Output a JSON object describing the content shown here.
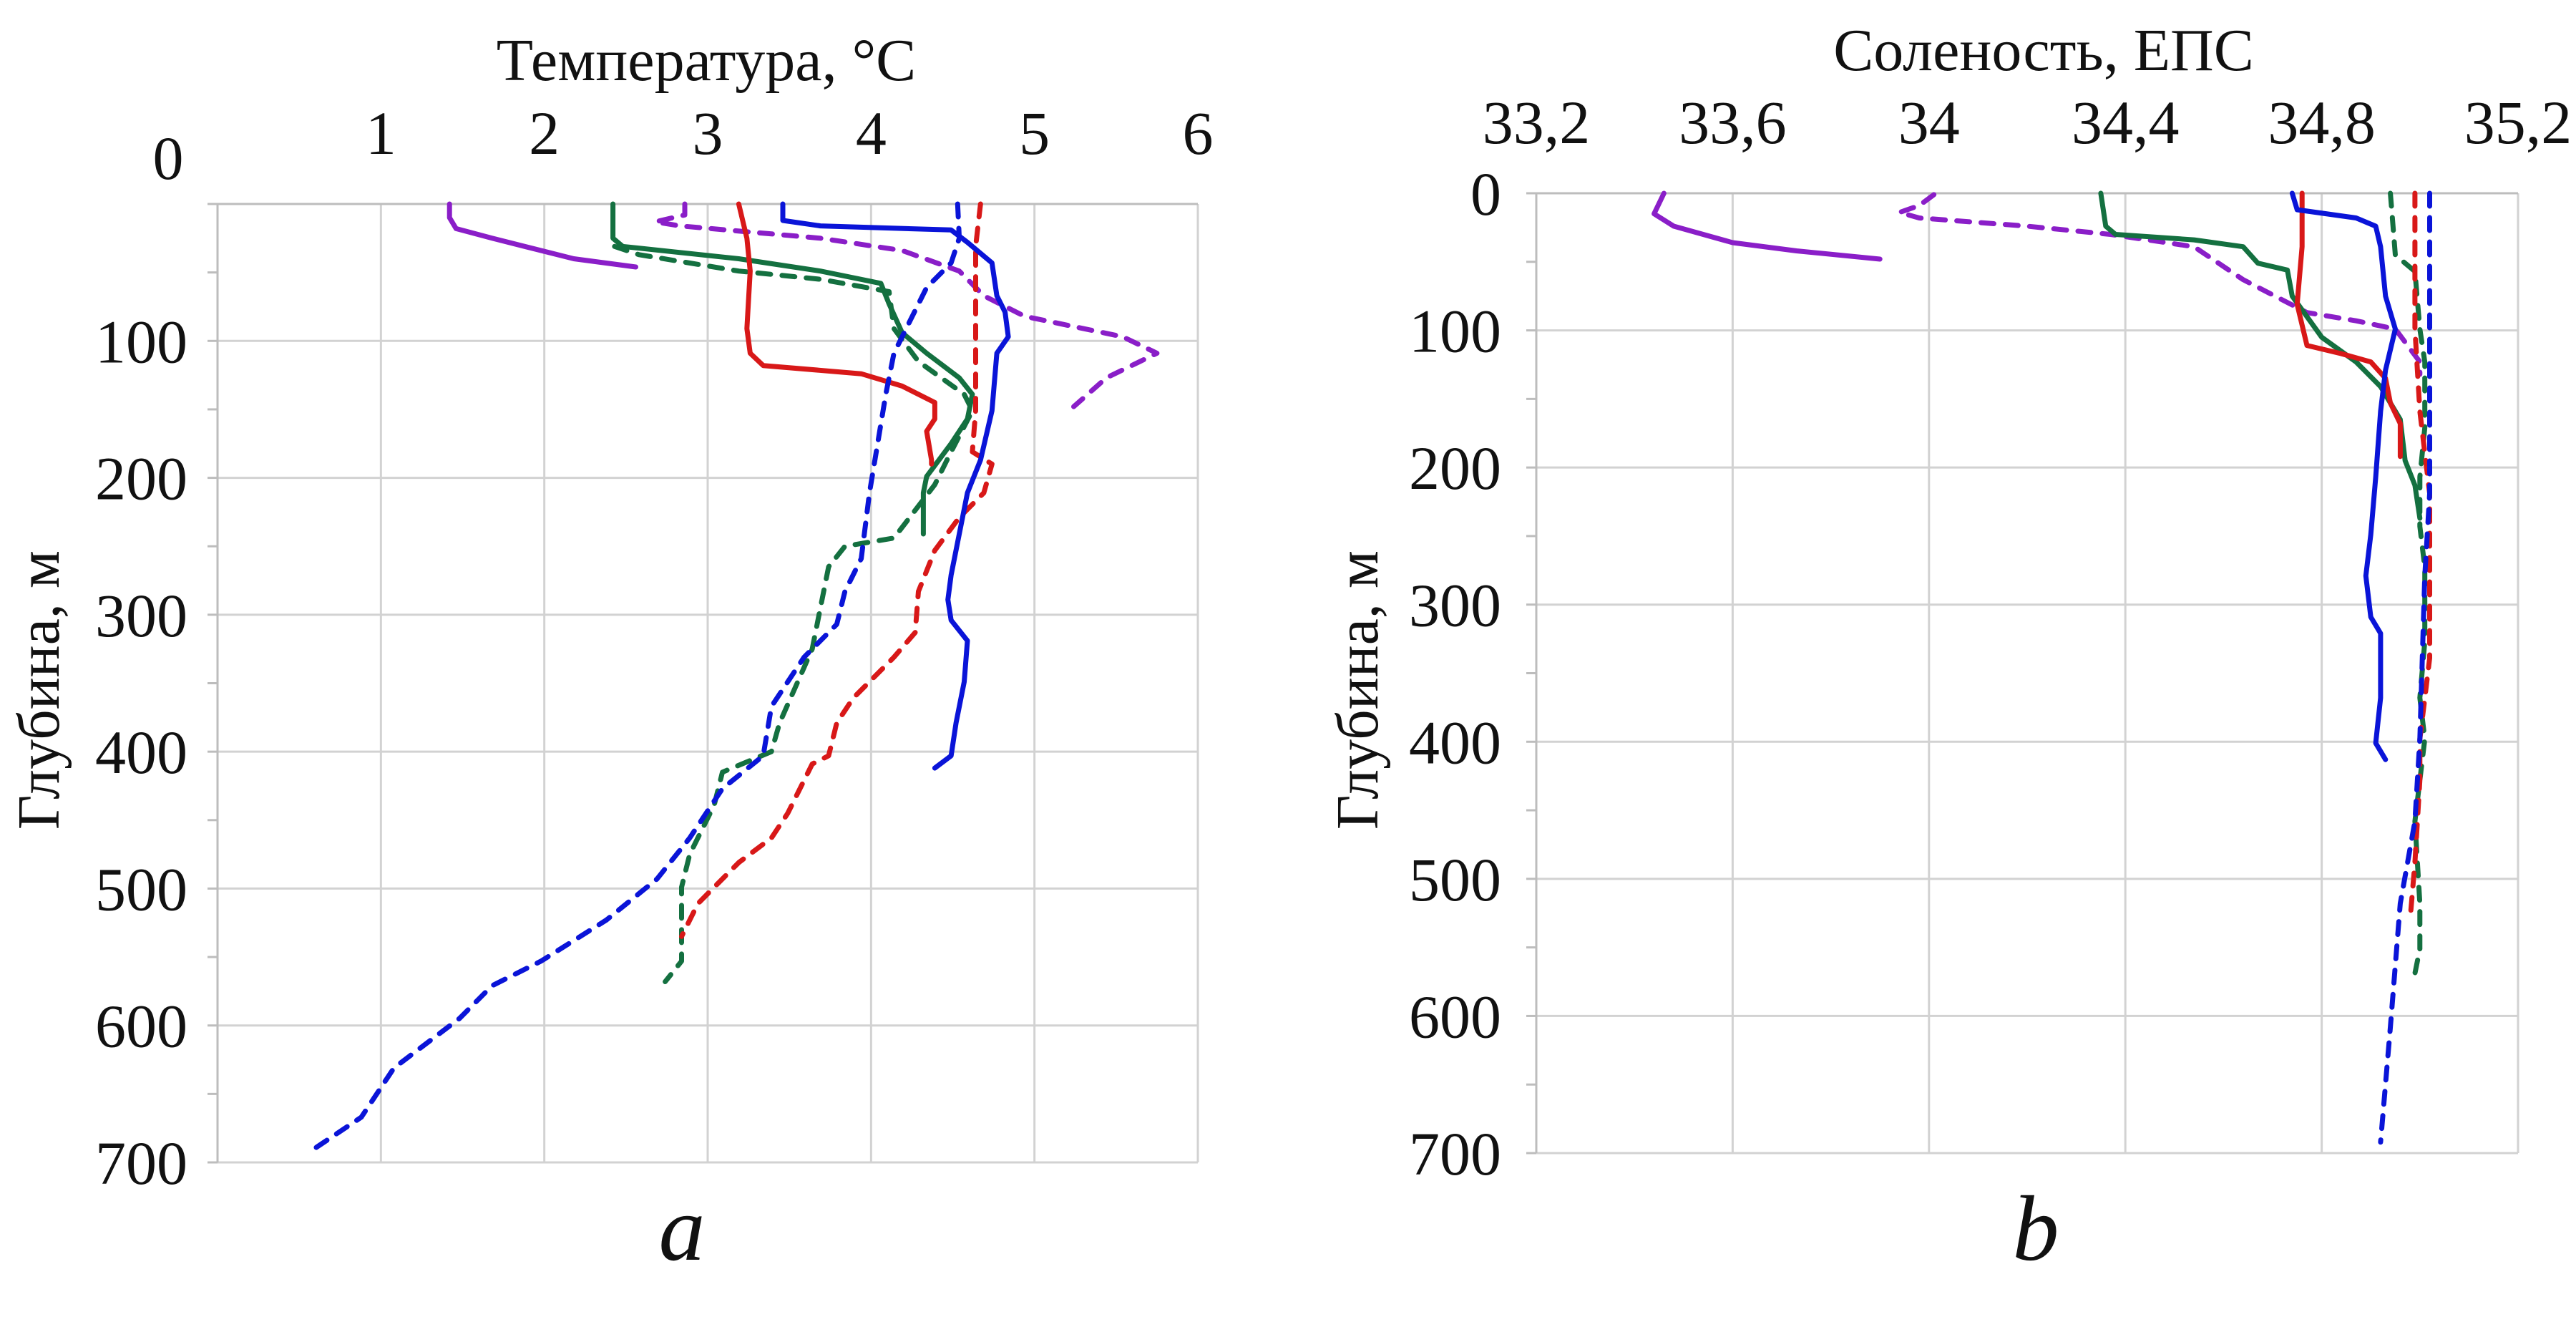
{
  "chart_data": [
    {
      "type": "line",
      "panel_label": "a",
      "title": "Температура, °C",
      "ylabel": "Глубина, м",
      "xaxis_position": "top",
      "yaxis_inverted": true,
      "xlim": [
        0,
        6
      ],
      "ylim": [
        0,
        700
      ],
      "x_ticks": [
        "0",
        "1",
        "2",
        "3",
        "4",
        "5",
        "6"
      ],
      "y_ticks": [
        "100",
        "200",
        "300",
        "400",
        "500",
        "600",
        "700"
      ],
      "grid": true,
      "series": [
        {
          "color": "#8a1ec8",
          "style": "solid",
          "points": [
            [
              1.42,
              0
            ],
            [
              1.42,
              10
            ],
            [
              1.46,
              18
            ],
            [
              1.68,
              25
            ],
            [
              1.88,
              31
            ],
            [
              2.18,
              40
            ],
            [
              2.56,
              46
            ]
          ]
        },
        {
          "color": "#8a1ec8",
          "style": "dashed",
          "points": [
            [
              2.86,
              0
            ],
            [
              2.86,
              8
            ],
            [
              2.68,
              13
            ],
            [
              2.83,
              16
            ],
            [
              3.69,
              25
            ],
            [
              4.19,
              34
            ],
            [
              4.54,
              49
            ],
            [
              4.69,
              67
            ],
            [
              4.94,
              82
            ],
            [
              5.54,
              97
            ],
            [
              5.75,
              109
            ],
            [
              5.44,
              127
            ],
            [
              5.24,
              148
            ]
          ]
        },
        {
          "color": "#147040",
          "style": "solid",
          "points": [
            [
              2.42,
              0
            ],
            [
              2.42,
              25
            ],
            [
              2.48,
              31
            ],
            [
              3.19,
              40
            ],
            [
              3.69,
              49
            ],
            [
              4.06,
              58
            ],
            [
              4.11,
              73
            ],
            [
              4.19,
              94
            ],
            [
              4.34,
              109
            ],
            [
              4.54,
              127
            ],
            [
              4.62,
              139
            ],
            [
              4.59,
              157
            ],
            [
              4.49,
              175
            ],
            [
              4.34,
              199
            ],
            [
              4.32,
              211
            ],
            [
              4.32,
              241
            ]
          ]
        },
        {
          "color": "#147040",
          "style": "dashed",
          "points": [
            [
              2.43,
              31
            ],
            [
              2.58,
              37
            ],
            [
              3.19,
              49
            ],
            [
              3.69,
              55
            ],
            [
              4.11,
              64
            ],
            [
              4.14,
              91
            ],
            [
              4.29,
              115
            ],
            [
              4.57,
              139
            ],
            [
              4.62,
              151
            ],
            [
              4.49,
              181
            ],
            [
              4.39,
              205
            ],
            [
              4.14,
              244
            ],
            [
              3.84,
              250
            ],
            [
              3.74,
              265
            ],
            [
              3.69,
              295
            ],
            [
              3.64,
              325
            ],
            [
              3.44,
              379
            ],
            [
              3.39,
              400
            ],
            [
              3.09,
              415
            ],
            [
              3.04,
              439
            ],
            [
              2.89,
              475
            ],
            [
              2.84,
              499
            ],
            [
              2.84,
              553
            ],
            [
              2.74,
              568
            ]
          ]
        },
        {
          "color": "#d81818",
          "style": "solid",
          "points": [
            [
              3.19,
              0
            ],
            [
              3.24,
              25
            ],
            [
              3.26,
              49
            ],
            [
              3.24,
              91
            ],
            [
              3.26,
              109
            ],
            [
              3.34,
              118
            ],
            [
              3.94,
              124
            ],
            [
              4.19,
              133
            ],
            [
              4.39,
              145
            ],
            [
              4.39,
              157
            ],
            [
              4.34,
              166
            ],
            [
              4.37,
              187
            ],
            [
              4.37,
              190
            ]
          ]
        },
        {
          "color": "#d81818",
          "style": "dashed",
          "points": [
            [
              4.67,
              0
            ],
            [
              4.64,
              31
            ],
            [
              4.64,
              151
            ],
            [
              4.62,
              181
            ],
            [
              4.74,
              190
            ],
            [
              4.69,
              211
            ],
            [
              4.54,
              229
            ],
            [
              4.39,
              253
            ],
            [
              4.29,
              283
            ],
            [
              4.27,
              313
            ],
            [
              4.14,
              331
            ],
            [
              3.89,
              361
            ],
            [
              3.79,
              379
            ],
            [
              3.74,
              403
            ],
            [
              3.64,
              409
            ],
            [
              3.49,
              445
            ],
            [
              3.39,
              463
            ],
            [
              3.19,
              481
            ],
            [
              3.04,
              499
            ],
            [
              2.94,
              511
            ],
            [
              2.84,
              535
            ]
          ]
        },
        {
          "color": "#0a14d8",
          "style": "solid",
          "points": [
            [
              3.46,
              0
            ],
            [
              3.46,
              12
            ],
            [
              3.69,
              16
            ],
            [
              4.49,
              19
            ],
            [
              4.59,
              28
            ],
            [
              4.74,
              43
            ],
            [
              4.77,
              67
            ],
            [
              4.82,
              79
            ],
            [
              4.84,
              97
            ],
            [
              4.77,
              109
            ],
            [
              4.74,
              151
            ],
            [
              4.67,
              187
            ],
            [
              4.59,
              211
            ],
            [
              4.54,
              241
            ],
            [
              4.49,
              271
            ],
            [
              4.47,
              289
            ],
            [
              4.49,
              304
            ],
            [
              4.59,
              319
            ],
            [
              4.57,
              349
            ],
            [
              4.52,
              379
            ],
            [
              4.49,
              403
            ],
            [
              4.39,
              412
            ]
          ]
        },
        {
          "color": "#0a14d8",
          "style": "dashed",
          "points": [
            [
              4.53,
              0
            ],
            [
              4.54,
              25
            ],
            [
              4.49,
              43
            ],
            [
              4.34,
              61
            ],
            [
              4.24,
              85
            ],
            [
              4.14,
              109
            ],
            [
              4.09,
              139
            ],
            [
              4.04,
              175
            ],
            [
              3.99,
              211
            ],
            [
              3.94,
              259
            ],
            [
              3.84,
              283
            ],
            [
              3.79,
              307
            ],
            [
              3.59,
              331
            ],
            [
              3.39,
              367
            ],
            [
              3.34,
              403
            ],
            [
              3.09,
              427
            ],
            [
              2.89,
              463
            ],
            [
              2.69,
              493
            ],
            [
              2.38,
              523
            ],
            [
              1.98,
              553
            ],
            [
              1.68,
              571
            ],
            [
              1.48,
              595
            ],
            [
              1.08,
              631
            ],
            [
              0.88,
              667
            ],
            [
              0.58,
              691
            ]
          ]
        }
      ]
    },
    {
      "type": "line",
      "panel_label": "b",
      "title": "Соленость, ЕПС",
      "ylabel": "Глубина, м",
      "xaxis_position": "top",
      "yaxis_inverted": true,
      "xlim": [
        33.2,
        35.2
      ],
      "ylim": [
        0,
        700
      ],
      "x_ticks": [
        "33,2",
        "33,6",
        "34",
        "34,4",
        "34,8",
        "35,2"
      ],
      "y_ticks": [
        "0",
        "100",
        "200",
        "300",
        "400",
        "500",
        "600",
        "700"
      ],
      "grid": true,
      "series": [
        {
          "color": "#8a1ec8",
          "style": "solid",
          "points": [
            [
              33.46,
              0
            ],
            [
              33.44,
              15
            ],
            [
              33.48,
              24
            ],
            [
              33.6,
              36
            ],
            [
              33.73,
              42
            ],
            [
              33.9,
              48
            ]
          ]
        },
        {
          "color": "#8a1ec8",
          "style": "dashed",
          "points": [
            [
              34.01,
              1
            ],
            [
              33.98,
              9
            ],
            [
              33.94,
              14
            ],
            [
              33.98,
              18
            ],
            [
              34.2,
              24
            ],
            [
              34.37,
              30
            ],
            [
              34.54,
              39
            ],
            [
              34.64,
              63
            ],
            [
              34.77,
              87
            ],
            [
              34.87,
              93
            ],
            [
              34.95,
              99
            ],
            [
              35.0,
              123
            ],
            [
              35.0,
              132
            ]
          ]
        },
        {
          "color": "#147040",
          "style": "solid",
          "points": [
            [
              34.35,
              0
            ],
            [
              34.36,
              24
            ],
            [
              34.38,
              30
            ],
            [
              34.54,
              34
            ],
            [
              34.64,
              39
            ],
            [
              34.67,
              51
            ],
            [
              34.73,
              56
            ],
            [
              34.74,
              75
            ],
            [
              34.8,
              105
            ],
            [
              34.87,
              123
            ],
            [
              34.92,
              141
            ],
            [
              34.96,
              165
            ],
            [
              34.97,
              195
            ],
            [
              34.99,
              213
            ],
            [
              35.0,
              237
            ]
          ]
        },
        {
          "color": "#147040",
          "style": "dashed",
          "points": [
            [
              34.94,
              0
            ],
            [
              34.95,
              45
            ],
            [
              34.99,
              57
            ],
            [
              35.0,
              99
            ],
            [
              35.01,
              123
            ],
            [
              35.01,
              171
            ],
            [
              35.0,
              207
            ],
            [
              35.0,
              243
            ],
            [
              35.01,
              273
            ],
            [
              35.01,
              327
            ],
            [
              35.0,
              368
            ],
            [
              35.01,
              398
            ],
            [
              34.99,
              458
            ],
            [
              35.0,
              518
            ],
            [
              35.0,
              551
            ],
            [
              34.99,
              569
            ]
          ]
        },
        {
          "color": "#d81818",
          "style": "solid",
          "points": [
            [
              34.76,
              0
            ],
            [
              34.76,
              39
            ],
            [
              34.75,
              81
            ],
            [
              34.77,
              111
            ],
            [
              34.84,
              117
            ],
            [
              34.9,
              123
            ],
            [
              34.93,
              135
            ],
            [
              34.94,
              153
            ],
            [
              34.96,
              168
            ],
            [
              34.96,
              192
            ]
          ]
        },
        {
          "color": "#d81818",
          "style": "dashed",
          "points": [
            [
              34.99,
              0
            ],
            [
              34.99,
              99
            ],
            [
              35.0,
              159
            ],
            [
              35.02,
              219
            ],
            [
              35.02,
              279
            ],
            [
              35.02,
              339
            ],
            [
              35.0,
              398
            ],
            [
              35.0,
              428
            ],
            [
              34.99,
              488
            ],
            [
              34.98,
              530
            ]
          ]
        },
        {
          "color": "#0a14d8",
          "style": "solid",
          "points": [
            [
              34.74,
              0
            ],
            [
              34.75,
              12
            ],
            [
              34.87,
              18
            ],
            [
              34.91,
              24
            ],
            [
              34.92,
              39
            ],
            [
              34.93,
              75
            ],
            [
              34.95,
              99
            ],
            [
              34.93,
              129
            ],
            [
              34.92,
              159
            ],
            [
              34.91,
              207
            ],
            [
              34.9,
              249
            ],
            [
              34.89,
              279
            ],
            [
              34.9,
              309
            ],
            [
              34.92,
              321
            ],
            [
              34.92,
              368
            ],
            [
              34.91,
              401
            ],
            [
              34.93,
              413
            ]
          ]
        },
        {
          "color": "#0a14d8",
          "style": "dashed",
          "points": [
            [
              35.02,
              0
            ],
            [
              35.02,
              159
            ],
            [
              35.02,
              219
            ],
            [
              35.01,
              279
            ],
            [
              35.0,
              398
            ],
            [
              34.99,
              458
            ],
            [
              34.96,
              518
            ],
            [
              34.94,
              608
            ],
            [
              34.92,
              692
            ]
          ]
        }
      ]
    }
  ]
}
